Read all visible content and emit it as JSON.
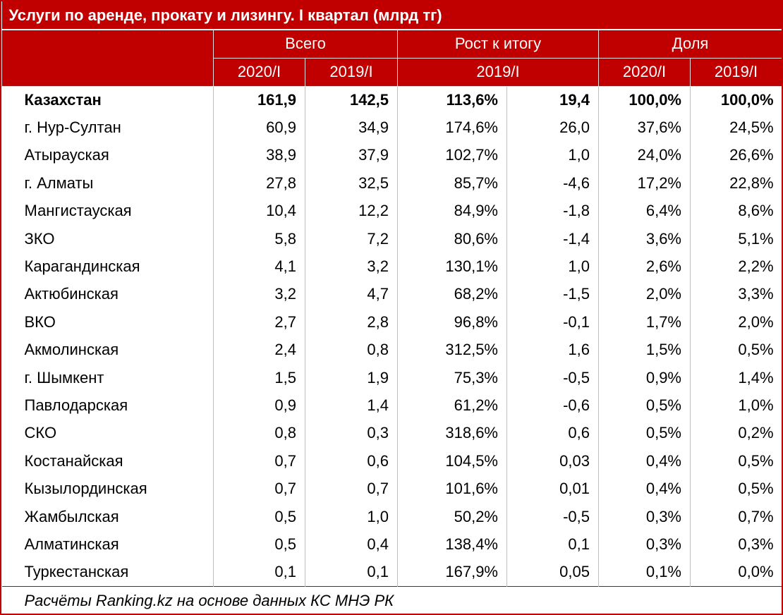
{
  "title": "Услуги по аренде, прокату и лизингу. I квартал (млрд тг)",
  "header": {
    "groups": [
      "Всего",
      "Рост к итогу",
      "Доля"
    ],
    "sub": [
      "2020/I",
      "2019/I",
      "2019/I",
      "2020/I",
      "2019/I"
    ]
  },
  "rows": [
    [
      "Казахстан",
      "161,9",
      "142,5",
      "113,6%",
      "19,4",
      "100,0%",
      "100,0%"
    ],
    [
      "г. Нур-Султан",
      "60,9",
      "34,9",
      "174,6%",
      "26,0",
      "37,6%",
      "24,5%"
    ],
    [
      "Атырауская",
      "38,9",
      "37,9",
      "102,7%",
      "1,0",
      "24,0%",
      "26,6%"
    ],
    [
      "г. Алматы",
      "27,8",
      "32,5",
      "85,7%",
      "-4,6",
      "17,2%",
      "22,8%"
    ],
    [
      "Мангистауская",
      "10,4",
      "12,2",
      "84,9%",
      "-1,8",
      "6,4%",
      "8,6%"
    ],
    [
      "ЗКО",
      "5,8",
      "7,2",
      "80,6%",
      "-1,4",
      "3,6%",
      "5,1%"
    ],
    [
      "Карагандинская",
      "4,1",
      "3,2",
      "130,1%",
      "1,0",
      "2,6%",
      "2,2%"
    ],
    [
      "Актюбинская",
      "3,2",
      "4,7",
      "68,2%",
      "-1,5",
      "2,0%",
      "3,3%"
    ],
    [
      "ВКО",
      "2,7",
      "2,8",
      "96,8%",
      "-0,1",
      "1,7%",
      "2,0%"
    ],
    [
      "Акмолинская",
      "2,4",
      "0,8",
      "312,5%",
      "1,6",
      "1,5%",
      "0,5%"
    ],
    [
      "г. Шымкент",
      "1,5",
      "1,9",
      "75,3%",
      "-0,5",
      "0,9%",
      "1,4%"
    ],
    [
      "Павлодарская",
      "0,9",
      "1,4",
      "61,2%",
      "-0,6",
      "0,5%",
      "1,0%"
    ],
    [
      "СКО",
      "0,8",
      "0,3",
      "318,6%",
      "0,6",
      "0,5%",
      "0,2%"
    ],
    [
      "Костанайская",
      "0,7",
      "0,6",
      "104,5%",
      "0,03",
      "0,4%",
      "0,5%"
    ],
    [
      "Кызылординская",
      "0,7",
      "0,7",
      "101,6%",
      "0,01",
      "0,4%",
      "0,5%"
    ],
    [
      "Жамбылская",
      "0,5",
      "1,0",
      "50,2%",
      "-0,5",
      "0,3%",
      "0,7%"
    ],
    [
      "Алматинская",
      "0,5",
      "0,4",
      "138,4%",
      "0,1",
      "0,3%",
      "0,3%"
    ],
    [
      "Туркестанская",
      "0,1",
      "0,1",
      "167,9%",
      "0,05",
      "0,1%",
      "0,0%"
    ]
  ],
  "footer": "Расчёты Ranking.kz на основе данных КС МНЭ РК"
}
